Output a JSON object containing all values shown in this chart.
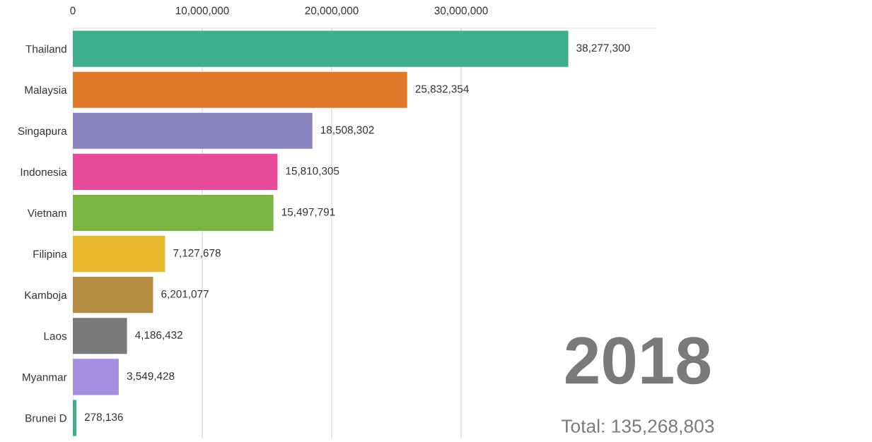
{
  "chart_data": {
    "type": "bar",
    "orientation": "horizontal",
    "categories": [
      "Thailand",
      "Malaysia",
      "Singapura",
      "Indonesia",
      "Vietnam",
      "Filipina",
      "Kamboja",
      "Laos",
      "Myanmar",
      "Brunei D"
    ],
    "values": [
      38277300,
      25832354,
      18508302,
      15810305,
      15497791,
      7127678,
      6201077,
      4186432,
      3549428,
      278136
    ],
    "value_labels": [
      "38,277,300",
      "25,832,354",
      "18,508,302",
      "15,810,305",
      "15,497,791",
      "7,127,678",
      "6,201,077",
      "4,186,432",
      "3,549,428",
      "278,136"
    ],
    "colors": [
      "#3daf8a",
      "#e07a2a",
      "#8b86c0",
      "#e84a9a",
      "#7ab441",
      "#e9b82e",
      "#b48c42",
      "#7a7a7a",
      "#a28fe0",
      "#3daf8a"
    ],
    "xticks": [
      0,
      {
        "value": 10000000,
        "label": "10,000,000"
      },
      {
        "value": 20000000,
        "label": "20,000,000"
      },
      {
        "value": 30000000,
        "label": "30,000,000"
      }
    ],
    "xlim": [
      0,
      45000000
    ],
    "grid": "x",
    "annotations": [
      "2018",
      "Total: 135,268,803"
    ]
  }
}
